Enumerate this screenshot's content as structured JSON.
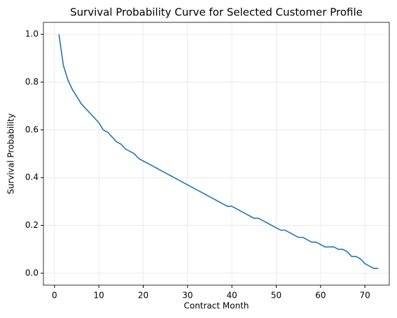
{
  "chart_data": {
    "type": "line",
    "title": "Survival Probability Curve for Selected Customer Profile",
    "xlabel": "Contract Month",
    "ylabel": "Survival Probability",
    "x": [
      1,
      2,
      3,
      4,
      5,
      6,
      7,
      8,
      9,
      10,
      11,
      12,
      13,
      14,
      15,
      16,
      17,
      18,
      19,
      20,
      21,
      22,
      23,
      24,
      25,
      26,
      27,
      28,
      29,
      30,
      31,
      32,
      33,
      34,
      35,
      36,
      37,
      38,
      39,
      40,
      41,
      42,
      43,
      44,
      45,
      46,
      47,
      48,
      49,
      50,
      51,
      52,
      53,
      54,
      55,
      56,
      57,
      58,
      59,
      60,
      61,
      62,
      63,
      64,
      65,
      66,
      67,
      68,
      69,
      70,
      71,
      72,
      73
    ],
    "series": [
      {
        "color": "#1f77b4",
        "values": [
          1.0,
          0.87,
          0.81,
          0.77,
          0.74,
          0.71,
          0.69,
          0.67,
          0.65,
          0.63,
          0.6,
          0.59,
          0.57,
          0.55,
          0.54,
          0.52,
          0.51,
          0.5,
          0.48,
          0.47,
          0.46,
          0.45,
          0.44,
          0.43,
          0.42,
          0.41,
          0.4,
          0.39,
          0.38,
          0.37,
          0.36,
          0.35,
          0.34,
          0.33,
          0.32,
          0.31,
          0.3,
          0.29,
          0.28,
          0.28,
          0.27,
          0.26,
          0.25,
          0.24,
          0.23,
          0.23,
          0.22,
          0.21,
          0.2,
          0.19,
          0.18,
          0.18,
          0.17,
          0.16,
          0.15,
          0.15,
          0.14,
          0.13,
          0.13,
          0.12,
          0.11,
          0.11,
          0.11,
          0.1,
          0.1,
          0.09,
          0.07,
          0.07,
          0.06,
          0.04,
          0.03,
          0.02,
          0.02
        ]
      }
    ],
    "xlim": [
      -2.5,
      75.5
    ],
    "ylim": [
      -0.05,
      1.05
    ],
    "xticks": [
      0,
      10,
      20,
      30,
      40,
      50,
      60,
      70
    ],
    "yticks": [
      {
        "value": 0,
        "label": "0.0"
      },
      {
        "value": 0.2,
        "label": "0.2"
      },
      {
        "value": 0.4,
        "label": "0.4"
      },
      {
        "value": 0.6,
        "label": "0.6"
      },
      {
        "value": 0.8,
        "label": "0.8"
      },
      {
        "value": 1,
        "label": "1.0"
      }
    ],
    "grid": true
  }
}
